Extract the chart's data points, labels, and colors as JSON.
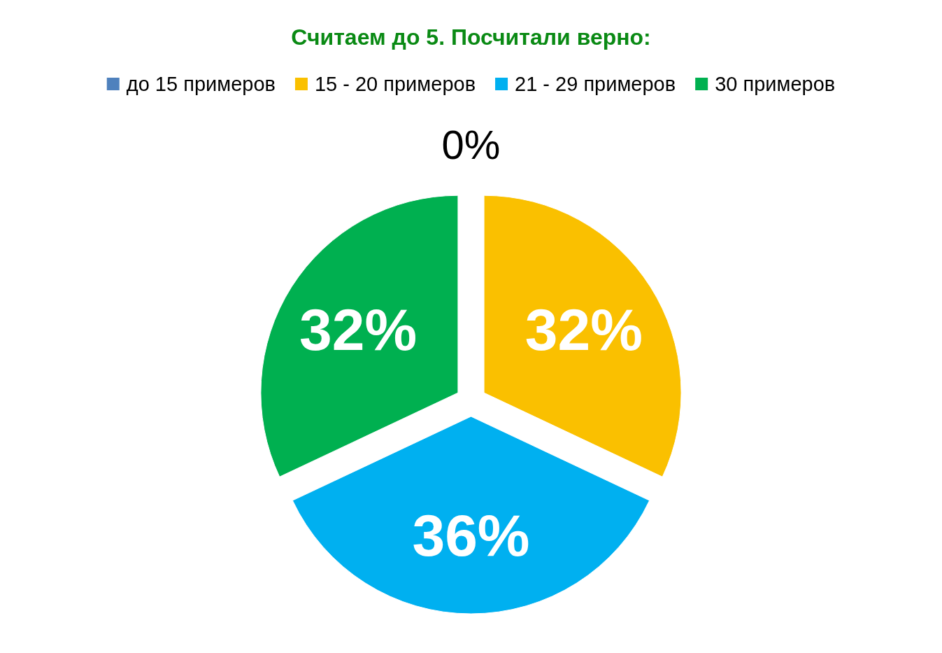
{
  "chart_data": {
    "type": "pie",
    "title": "Считаем до 5. Посчитали верно:",
    "categories": [
      "до 15 примеров",
      "15 - 20 примеров",
      "21 - 29 примеров",
      "30 примеров"
    ],
    "values": [
      0,
      32,
      36,
      32
    ],
    "colors": [
      "#4f81bd",
      "#fac000",
      "#00b0f0",
      "#00b050"
    ],
    "value_labels": [
      "0%",
      "32%",
      "36%",
      "32%"
    ],
    "legend": "top"
  }
}
